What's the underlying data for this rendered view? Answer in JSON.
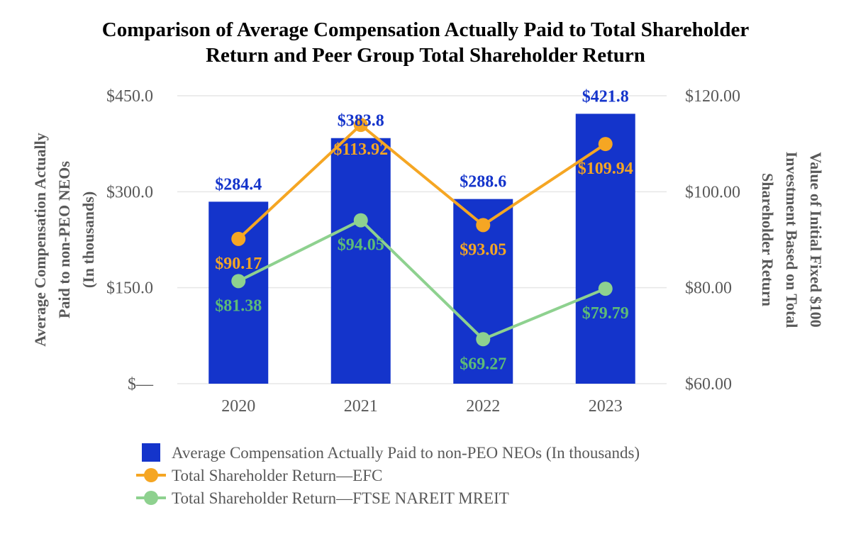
{
  "chart_data": {
    "type": "bar",
    "title_lines": [
      "Comparison of Average Compensation Actually Paid to Total Shareholder",
      "Return and Peer Group Total Shareholder Return"
    ],
    "categories": [
      "2020",
      "2021",
      "2022",
      "2023"
    ],
    "left_axis": {
      "title_lines": [
        "Average Compensation Actually",
        "Paid to non-PEO NEOs",
        "(In thousands)"
      ],
      "range": [
        0,
        450
      ],
      "ticks": [
        0,
        150,
        300,
        450
      ],
      "tick_labels": [
        "$—",
        "$150.0",
        "$300.0",
        "$450.0"
      ]
    },
    "right_axis": {
      "title_lines": [
        "Value of Initial  Fixed $100",
        "Investment Based on Total",
        "Shareholder Return"
      ],
      "range": [
        60,
        120
      ],
      "ticks": [
        60,
        80,
        100,
        120
      ],
      "tick_labels": [
        "$60.00",
        "$80.00",
        "$100.00",
        "$120.00"
      ]
    },
    "grid": true,
    "series": [
      {
        "name": "Average Compensation Actually Paid to non-PEO NEOs (In thousands)",
        "type": "bar",
        "axis": "left",
        "color": "#1434CB",
        "values": [
          284.4,
          383.8,
          288.6,
          421.8
        ],
        "labels": [
          "$284.4",
          "$383.8",
          "$288.6",
          "$421.8"
        ]
      },
      {
        "name": "Total Shareholder Return—EFC",
        "type": "line",
        "axis": "right",
        "color": "#F5A623",
        "values": [
          90.17,
          113.92,
          93.05,
          109.94
        ],
        "labels": [
          "$90.17",
          "$113.92",
          "$93.05",
          "$109.94"
        ]
      },
      {
        "name": "Total Shareholder Return—FTSE NAREIT MREIT",
        "type": "line",
        "axis": "right",
        "color": "#8ED18F",
        "label_color": "#5DBB77",
        "values": [
          81.38,
          94.05,
          69.27,
          79.79
        ],
        "labels": [
          "$81.38",
          "$94.05",
          "$69.27",
          "$79.79"
        ]
      }
    ],
    "legend_position": "bottom"
  }
}
